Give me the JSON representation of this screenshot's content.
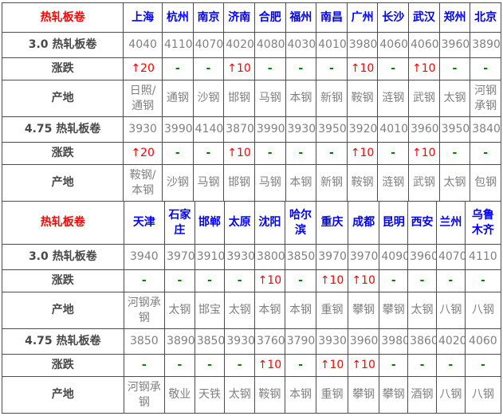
{
  "colors": {
    "border": "#4d4d4d",
    "section_red": "#ff0000",
    "city_blue": "#0000ee",
    "up_red": "#ff0000",
    "dash_green": "#008000",
    "value_gray": "#808080",
    "row_label_gray": "#474747"
  },
  "chart_data": [
    {
      "type": "table",
      "header_label": "热轧板卷",
      "columns": [
        "上海",
        "杭州",
        "南京",
        "济南",
        "合肥",
        "福州",
        "南昌",
        "广州",
        "长沙",
        "武汉",
        "郑州",
        "北京"
      ],
      "rows": [
        {
          "label": "3.0 热轧板卷",
          "type": "price",
          "values": [
            "4040",
            "4110",
            "4070",
            "4020",
            "4080",
            "4030",
            "4010",
            "3980",
            "4060",
            "4060",
            "3960",
            "3890"
          ]
        },
        {
          "label": "涨跌",
          "type": "change",
          "values": [
            "↑20",
            "-",
            "-",
            "↑10",
            "-",
            "-",
            "-",
            "↑10",
            "-",
            "↑10",
            "-",
            "-"
          ]
        },
        {
          "label": "产地",
          "type": "origin",
          "values": [
            "日照/通钢",
            "通钢",
            "沙钢",
            "邯钢",
            "马钢",
            "本钢",
            "新钢",
            "鞍钢",
            "涟钢",
            "武钢",
            "太钢",
            "河钢承钢"
          ]
        },
        {
          "label": "4.75 热轧板卷",
          "type": "price",
          "values": [
            "3930",
            "3990",
            "4140",
            "3870",
            "3990",
            "3930",
            "3950",
            "3920",
            "4010",
            "3960",
            "3950",
            "3840"
          ]
        },
        {
          "label": "涨跌",
          "type": "change",
          "values": [
            "↑20",
            "-",
            "-",
            "↑10",
            "-",
            "-",
            "-",
            "↑10",
            "-",
            "↑10",
            "-",
            "-"
          ]
        },
        {
          "label": "产地",
          "type": "origin",
          "values": [
            "鞍钢/本钢",
            "沙钢",
            "马钢",
            "邯钢",
            "马钢",
            "本钢",
            "新钢",
            "鞍钢",
            "涟钢",
            "武钢",
            "太钢",
            "包钢"
          ]
        }
      ]
    },
    {
      "type": "table",
      "header_label": "热轧板卷",
      "columns": [
        "天津",
        "石家庄",
        "邯郸",
        "太原",
        "沈阳",
        "哈尔滨",
        "重庆",
        "成都",
        "昆明",
        "西安",
        "兰州",
        "乌鲁木齐"
      ],
      "rows": [
        {
          "label": "3.0 热轧板卷",
          "type": "price",
          "values": [
            "3940",
            "3970",
            "3910",
            "3930",
            "3800",
            "3850",
            "3970",
            "3970",
            "4090",
            "3960",
            "4070",
            "4110"
          ]
        },
        {
          "label": "涨跌",
          "type": "change",
          "values": [
            "-",
            "-",
            "-",
            "-",
            "↑10",
            "-",
            "↑10",
            "↑10",
            "-",
            "-",
            "-",
            "-"
          ]
        },
        {
          "label": "产地",
          "type": "origin",
          "values": [
            "河钢承钢",
            "太钢",
            "邯宝",
            "太钢",
            "本钢",
            "本钢",
            "重钢",
            "攀钢",
            "攀钢",
            "太钢",
            "八钢",
            "八钢"
          ]
        },
        {
          "label": "4.75 热轧板卷",
          "type": "price",
          "values": [
            "3850",
            "3890",
            "3850",
            "3930",
            "3760",
            "3790",
            "3930",
            "3960",
            "3980",
            "3860",
            "4020",
            "4060"
          ]
        },
        {
          "label": "涨跌",
          "type": "change",
          "values": [
            "-",
            "-",
            "-",
            "-",
            "↑10",
            "-",
            "↑10",
            "↑10",
            "-",
            "-",
            "-",
            "-"
          ]
        },
        {
          "label": "产地",
          "type": "origin",
          "values": [
            "河钢承钢",
            "敬业",
            "天铁",
            "太钢",
            "鞍钢",
            "本钢",
            "重钢",
            "攀钢",
            "攀钢",
            "酒钢",
            "八钢",
            "八钢"
          ]
        }
      ]
    }
  ]
}
